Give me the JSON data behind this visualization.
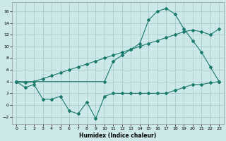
{
  "xlabel": "Humidex (Indice chaleur)",
  "bg_color": "#cce8e8",
  "grid_color": "#aacccc",
  "line_color": "#1a7a6e",
  "xlim": [
    -0.5,
    23.5
  ],
  "ylim": [
    -3.2,
    17.5
  ],
  "yticks": [
    -2,
    0,
    2,
    4,
    6,
    8,
    10,
    12,
    14,
    16
  ],
  "xticks": [
    0,
    1,
    2,
    3,
    4,
    5,
    6,
    7,
    8,
    9,
    10,
    11,
    12,
    13,
    14,
    15,
    16,
    17,
    18,
    19,
    20,
    21,
    22,
    23
  ],
  "line1_x": [
    0,
    1,
    2,
    3,
    4,
    5,
    6,
    7,
    8,
    9,
    10,
    11,
    12,
    13,
    14,
    15,
    16,
    17,
    18,
    19,
    20,
    21,
    22,
    23
  ],
  "line1_y": [
    4,
    3,
    3.5,
    1,
    1,
    1.5,
    -1.0,
    -1.5,
    0.5,
    -2.3,
    1.5,
    2,
    2,
    2,
    2,
    2,
    2,
    2,
    2.5,
    3,
    3.5,
    3.5,
    3.8,
    4
  ],
  "line2_x": [
    0,
    23
  ],
  "line2_y": [
    4,
    4
  ],
  "line2_mid_x": [
    0,
    1,
    2,
    3,
    4,
    5,
    6,
    7,
    8,
    9,
    10,
    11,
    12,
    13,
    14,
    15,
    16,
    17,
    18,
    19,
    20,
    21,
    22,
    23
  ],
  "line2_mid_y": [
    4,
    3.8,
    4.0,
    4.5,
    5.0,
    5.5,
    6.0,
    6.5,
    7.0,
    7.5,
    8.0,
    8.5,
    9.0,
    9.5,
    10.0,
    10.5,
    11.0,
    11.5,
    12.0,
    12.5,
    12.8,
    12.5,
    12.0,
    13.0
  ],
  "line3_x": [
    0,
    10,
    11,
    12,
    13,
    14,
    15,
    16,
    17,
    18,
    19,
    20,
    21,
    22,
    23
  ],
  "line3_y": [
    4,
    4,
    7.5,
    8.5,
    9.5,
    10.5,
    14.5,
    16.0,
    16.5,
    15.5,
    13.0,
    11.0,
    9.0,
    6.5,
    4
  ]
}
